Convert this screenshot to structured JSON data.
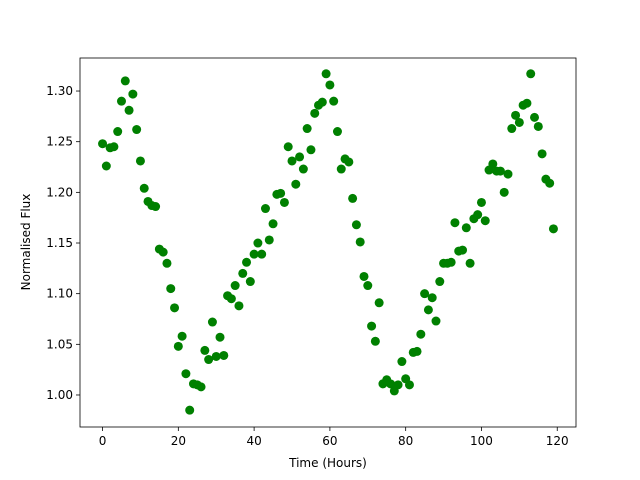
{
  "chart_data": {
    "type": "scatter",
    "xlabel": "Time (Hours)",
    "ylabel": "Normalised Flux",
    "color": "#008000",
    "xlim": [
      -5.95,
      124.95
    ],
    "xticks": [
      0,
      20,
      40,
      60,
      80,
      100,
      120
    ],
    "ylim": [
      0.9684,
      1.3326
    ],
    "yticks": [
      {
        "value": 1.0,
        "label": "1.00"
      },
      {
        "value": 1.05,
        "label": "1.05"
      },
      {
        "value": 1.1,
        "label": "1.10"
      },
      {
        "value": 1.15,
        "label": "1.15"
      },
      {
        "value": 1.2,
        "label": "1.20"
      },
      {
        "value": 1.25,
        "label": "1.25"
      },
      {
        "value": 1.3,
        "label": "1.30"
      }
    ],
    "x": [
      0,
      1,
      2,
      3,
      4,
      5,
      6,
      7,
      8,
      9,
      10,
      11,
      12,
      13,
      14,
      15,
      16,
      17,
      18,
      19,
      20,
      21,
      22,
      23,
      24,
      25,
      26,
      27,
      28,
      29,
      30,
      31,
      32,
      33,
      34,
      35,
      36,
      37,
      38,
      39,
      40,
      41,
      42,
      43,
      44,
      45,
      46,
      47,
      48,
      49,
      50,
      51,
      52,
      53,
      54,
      55,
      56,
      57,
      58,
      59,
      60,
      61,
      62,
      63,
      64,
      65,
      66,
      67,
      68,
      69,
      70,
      71,
      72,
      73,
      74,
      75,
      76,
      77,
      78,
      79,
      80,
      81,
      82,
      83,
      84,
      85,
      86,
      87,
      88,
      89,
      90,
      91,
      92,
      93,
      94,
      95,
      96,
      97,
      98,
      99,
      100,
      101,
      102,
      103,
      104,
      105,
      106,
      107,
      108,
      109,
      110,
      111,
      112,
      113,
      114,
      115,
      116,
      117,
      118,
      119
    ],
    "values": [
      1.248,
      1.226,
      1.244,
      1.245,
      1.26,
      1.29,
      1.31,
      1.281,
      1.297,
      1.262,
      1.231,
      1.204,
      1.191,
      1.187,
      1.186,
      1.144,
      1.141,
      1.13,
      1.105,
      1.086,
      1.048,
      1.058,
      1.021,
      0.985,
      1.011,
      1.01,
      1.008,
      1.044,
      1.035,
      1.072,
      1.038,
      1.057,
      1.039,
      1.098,
      1.095,
      1.108,
      1.088,
      1.12,
      1.131,
      1.112,
      1.139,
      1.15,
      1.139,
      1.184,
      1.153,
      1.169,
      1.198,
      1.199,
      1.19,
      1.245,
      1.231,
      1.208,
      1.235,
      1.223,
      1.263,
      1.242,
      1.278,
      1.286,
      1.289,
      1.317,
      1.306,
      1.29,
      1.26,
      1.223,
      1.233,
      1.23,
      1.194,
      1.168,
      1.151,
      1.117,
      1.108,
      1.068,
      1.053,
      1.091,
      1.011,
      1.015,
      1.011,
      1.004,
      1.01,
      1.033,
      1.016,
      1.01,
      1.042,
      1.043,
      1.06,
      1.1,
      1.084,
      1.096,
      1.073,
      1.112,
      1.13,
      1.13,
      1.131,
      1.17,
      1.142,
      1.143,
      1.165,
      1.13,
      1.174,
      1.178,
      1.19,
      1.172,
      1.222,
      1.228,
      1.221,
      1.221,
      1.2,
      1.218,
      1.263,
      1.276,
      1.269,
      1.286,
      1.288,
      1.317,
      1.274,
      1.265,
      1.238,
      1.213,
      1.209,
      1.164
    ]
  }
}
